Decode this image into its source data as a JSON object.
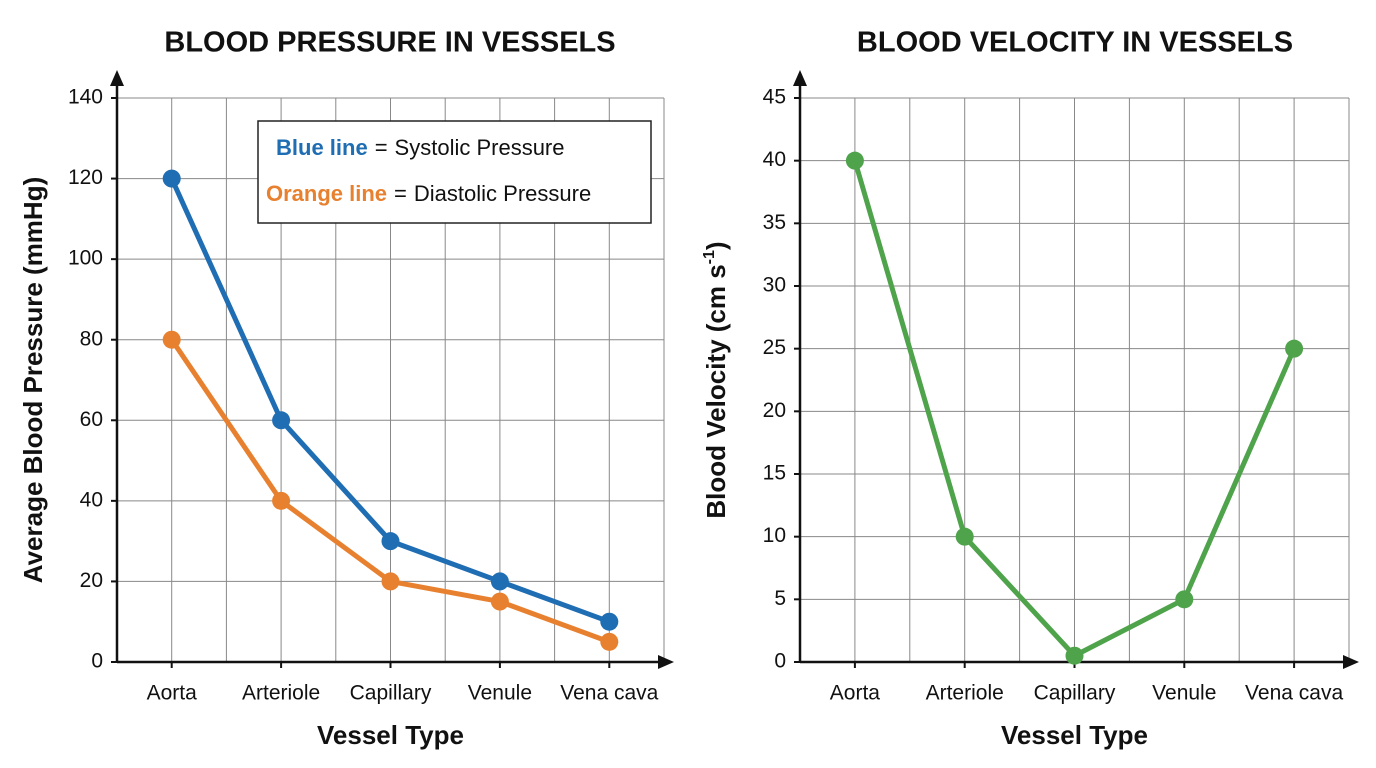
{
  "chart_data": [
    {
      "type": "line",
      "title": "BLOOD PRESSURE IN VESSELS",
      "x_label": "Vessel Type",
      "y_label": [
        "Average Blood Pressure (mmHg)"
      ],
      "categories": [
        "Aorta",
        "Arteriole",
        "Capillary",
        "Venule",
        "Vena cava"
      ],
      "series": [
        {
          "name": "Systolic Pressure",
          "key": "Blue line",
          "color": "#1f6db3",
          "values": [
            120,
            60,
            30,
            20,
            10
          ]
        },
        {
          "name": "Diastolic Pressure",
          "key": "Orange line",
          "color": "#e8812f",
          "values": [
            80,
            40,
            20,
            15,
            5
          ]
        }
      ],
      "legend_separator": "=",
      "ylim": [
        0,
        140
      ],
      "yticks": [
        0,
        20,
        40,
        60,
        80,
        100,
        120,
        140
      ],
      "grid": true,
      "legend": "upper right"
    },
    {
      "type": "line",
      "title": "BLOOD VELOCITY IN VESSELS",
      "x_label": "Vessel Type",
      "y_label": [
        "Blood Velocity (cm s",
        "-1",
        ")"
      ],
      "categories": [
        "Aorta",
        "Arteriole",
        "Capillary",
        "Venule",
        "Vena cava"
      ],
      "series": [
        {
          "color": "#4ea34b",
          "values": [
            40,
            10,
            0.5,
            5,
            25
          ]
        }
      ],
      "ylim": [
        0,
        45
      ],
      "yticks": [
        0,
        5,
        10,
        15,
        20,
        25,
        30,
        35,
        40,
        45
      ],
      "grid": true
    }
  ]
}
